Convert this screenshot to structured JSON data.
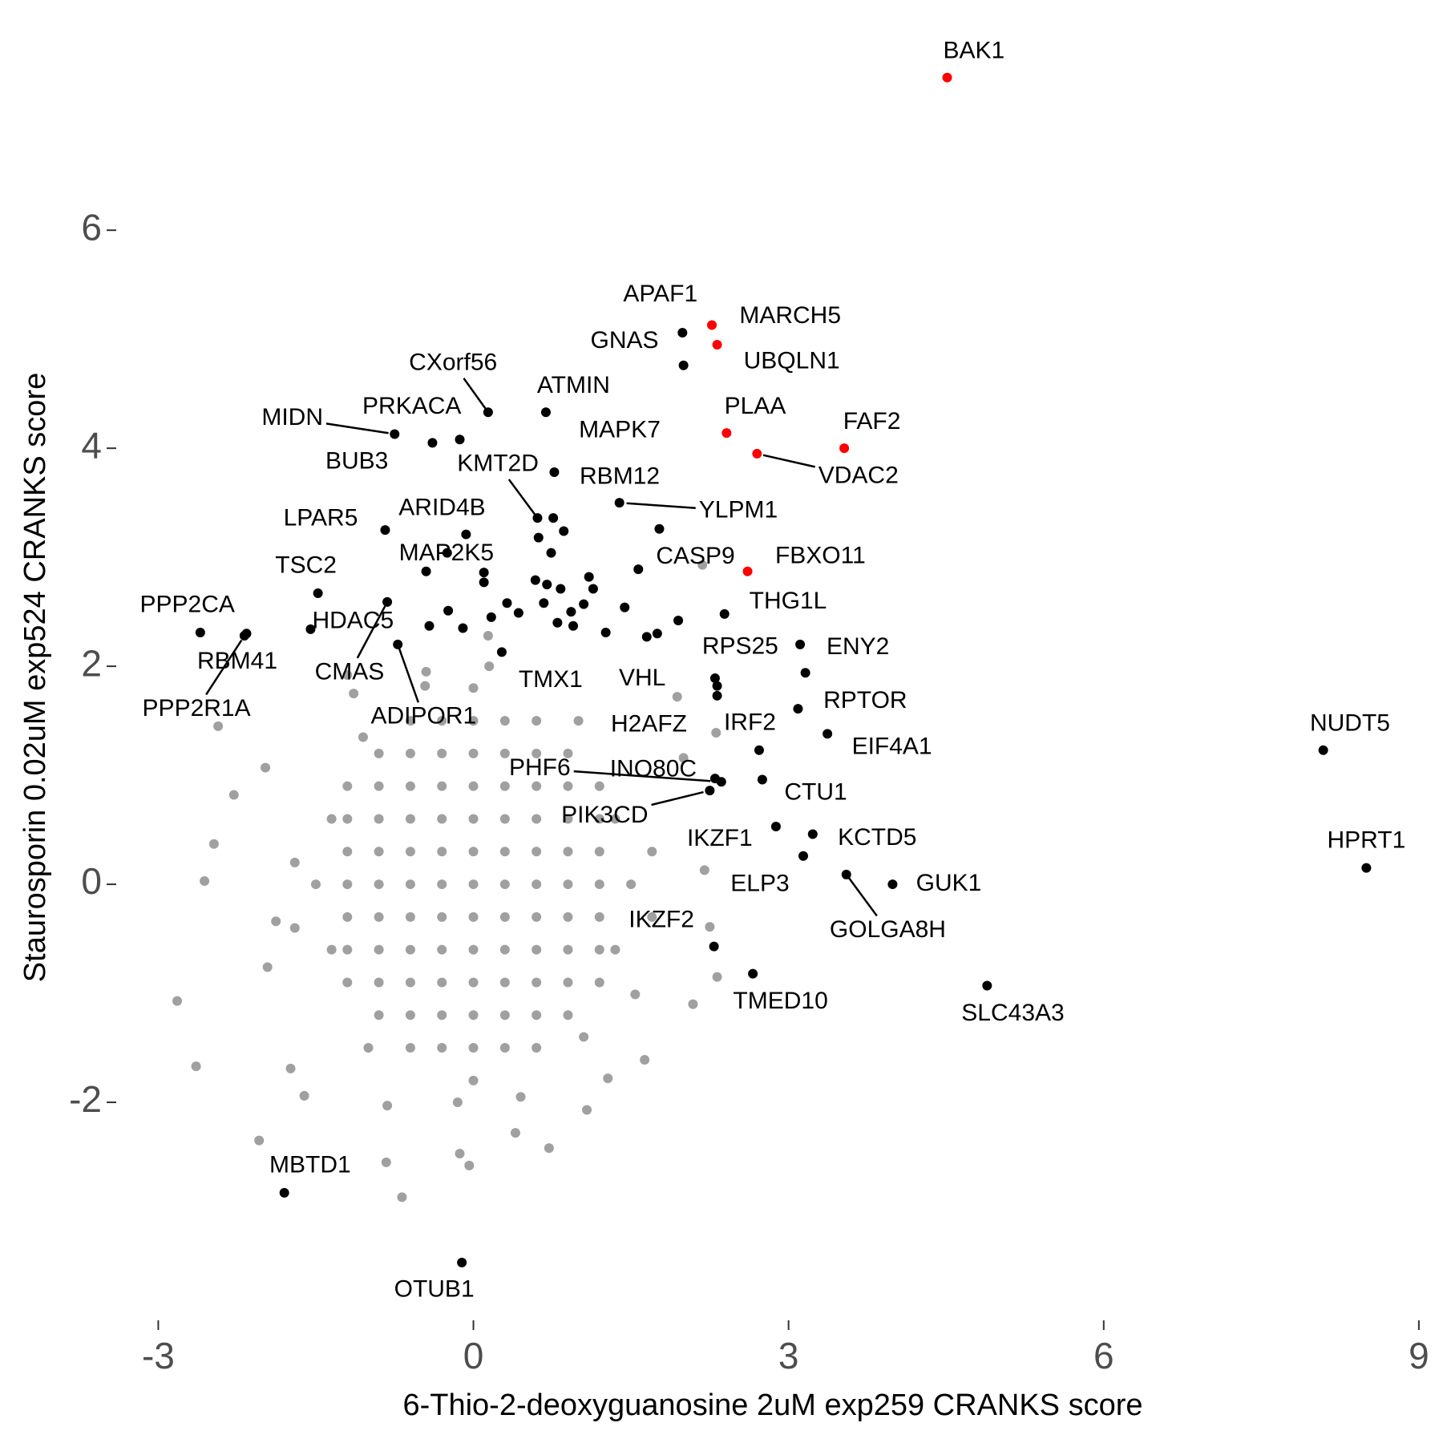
{
  "chart_data": {
    "type": "scatter",
    "x_label": "6-Thio-2-deoxyguanosine 2uM exp259 CRANKS score",
    "y_label": "Staurosporin 0.02uM exp524 CRANKS score",
    "xlim": [
      -3.4,
      9.1
    ],
    "ylim": [
      -4.0,
      7.7
    ],
    "xticks": [
      -3,
      0,
      3,
      6,
      9
    ],
    "yticks": [
      -2,
      0,
      2,
      4,
      6
    ],
    "grid": false,
    "series": [
      {
        "color": "#a0a0a0",
        "x": [
          -1.5,
          -1.2,
          -1.2,
          -1.2,
          -1.2,
          -1.2,
          -1.2,
          -1.2,
          -0.9,
          -0.9,
          -0.9,
          -0.9,
          -0.9,
          -0.9,
          -0.9,
          -0.9,
          -0.9,
          -0.6,
          -0.6,
          -0.6,
          -0.6,
          -0.6,
          -0.6,
          -0.6,
          -0.6,
          -0.6,
          -0.6,
          -0.6,
          -0.3,
          -0.3,
          -0.3,
          -0.3,
          -0.3,
          -0.3,
          -0.3,
          -0.3,
          -0.3,
          -0.3,
          -0.3,
          0,
          0,
          0,
          0,
          0,
          0,
          0,
          0,
          0,
          0,
          0,
          0,
          0,
          0.3,
          0.3,
          0.3,
          0.3,
          0.3,
          0.3,
          0.3,
          0.3,
          0.3,
          0.3,
          0.3,
          0.6,
          0.6,
          0.6,
          0.6,
          0.6,
          0.6,
          0.6,
          0.6,
          0.6,
          0.6,
          0.6,
          0.9,
          0.9,
          0.9,
          0.9,
          0.9,
          0.9,
          0.9,
          0.9,
          0.9,
          1.2,
          1.2,
          1.2,
          1.2,
          1.2,
          1.2,
          1.2,
          1.5,
          -2.82,
          -2.64,
          -2.43,
          -2.47,
          -2.28,
          -2.56,
          -2.04,
          -1.98,
          -1.74,
          -1.61,
          -1.2,
          -1.14,
          -0.83,
          -0.68,
          -0.04,
          -0.13,
          0.72,
          1.08,
          1.63,
          2.09,
          2.32,
          2.25,
          2.2,
          2.0,
          2.31,
          2.18,
          1.94,
          0.14,
          -0.46,
          -1.88,
          -1.96,
          1.54,
          1.28,
          -0.82,
          0.4,
          -1.35,
          -1.35,
          1.35,
          1.35,
          1.7,
          1.7,
          -1.7,
          -1.7,
          0.15,
          -0.15,
          0.45,
          -0.45,
          1.0,
          -1.0,
          1.05,
          -1.05
        ],
        "y": [
          0,
          -0.9,
          -0.6,
          -0.3,
          0,
          0.3,
          0.6,
          0.9,
          -1.2,
          -0.9,
          -0.6,
          -0.3,
          0,
          0.3,
          0.6,
          0.9,
          1.2,
          -1.5,
          -1.2,
          -0.9,
          -0.6,
          -0.3,
          0,
          0.3,
          0.6,
          0.9,
          1.2,
          1.5,
          -1.5,
          -1.2,
          -0.9,
          -0.6,
          -0.3,
          0,
          0.3,
          0.6,
          0.9,
          1.2,
          1.5,
          -1.8,
          -1.5,
          -1.2,
          -0.9,
          -0.6,
          -0.3,
          0,
          0.3,
          0.6,
          0.9,
          1.2,
          1.5,
          1.8,
          -1.5,
          -1.2,
          -0.9,
          -0.6,
          -0.3,
          0,
          0.3,
          0.6,
          0.9,
          1.2,
          1.5,
          -1.5,
          -1.2,
          -0.9,
          -0.6,
          -0.3,
          0,
          0.3,
          0.6,
          0.9,
          1.2,
          1.5,
          -1.2,
          -0.9,
          -0.6,
          -0.3,
          0,
          0.3,
          0.6,
          0.9,
          1.2,
          -0.9,
          -0.6,
          -0.3,
          0,
          0.3,
          0.6,
          0.9,
          0,
          -1.07,
          -1.67,
          1.45,
          0.37,
          0.82,
          0.03,
          -2.35,
          1.07,
          -1.69,
          -1.94,
          1.92,
          1.75,
          -2.55,
          -2.87,
          -2.58,
          -2.47,
          -2.42,
          -2.07,
          -1.61,
          -1.1,
          -0.85,
          -0.39,
          0.13,
          1.16,
          1.39,
          2.93,
          1.72,
          2.28,
          1.82,
          -0.34,
          -0.76,
          -1.01,
          -1.78,
          -2.03,
          -2.28,
          0.6,
          -0.6,
          0.6,
          -0.6,
          0.3,
          -0.3,
          0.2,
          -0.4,
          2.0,
          -2.0,
          -1.95,
          1.95,
          1.5,
          -1.5,
          -1.4,
          1.35
        ]
      },
      {
        "color": "#000000",
        "x": [
          0.62,
          0.76,
          0.86,
          0.74,
          0.1,
          0.1,
          0.59,
          0.7,
          0.83,
          1.1,
          1.14,
          0.32,
          0.43,
          0.67,
          1.05,
          0.93,
          0.8,
          0.95,
          1.26,
          1.44,
          1.95,
          1.75,
          1.65,
          -0.24,
          -0.42,
          -0.1,
          0.17,
          -0.25,
          2.32
        ],
        "y": [
          3.18,
          3.36,
          3.24,
          3.04,
          2.86,
          2.77,
          2.79,
          2.75,
          2.71,
          2.82,
          2.71,
          2.58,
          2.49,
          2.58,
          2.57,
          2.5,
          2.4,
          2.37,
          2.31,
          2.54,
          2.42,
          2.3,
          2.27,
          2.51,
          2.37,
          2.35,
          2.45,
          3.04,
          1.82
        ]
      },
      {
        "color": "#000000",
        "labels": [
          "APAF1",
          "GNAS",
          "CXorf56",
          "ATMIN",
          "MIDN",
          "PRKACA",
          "BUB3",
          "KMT2D",
          "MAPK7",
          "RBM12",
          "YLPM1",
          "LPAR5",
          "ARID4B",
          "MAP2K5",
          "CASP9",
          "TSC2",
          "THG1L",
          "PPP2CA",
          "RBM41",
          "PPP2R1A",
          "HDAC5",
          "CMAS",
          "ADIPOR1",
          "RPS25",
          "ENY2",
          "TMX1",
          "VHL",
          "H2AFZ",
          "RPTOR",
          "EIF4A1",
          "IRF2",
          "PHF6",
          "INO80C",
          "CTU1",
          "PIK3CD",
          "NUDT5",
          "HPRT1",
          "IKZF1",
          "KCTD5",
          "ELP3",
          "GOLGA8H",
          "GUK1",
          "IKZF2",
          "TMED10",
          "SLC43A3",
          "MBTD1",
          "OTUB1"
        ],
        "x": [
          1.99,
          2.0,
          0.14,
          0.69,
          -0.75,
          -0.13,
          -0.39,
          0.61,
          0.77,
          1.77,
          1.39,
          -0.84,
          -0.07,
          -0.45,
          1.57,
          -1.48,
          2.39,
          -2.6,
          -2.16,
          -2.18,
          -1.55,
          -0.82,
          -0.72,
          3.11,
          3.16,
          0.27,
          2.3,
          2.32,
          3.09,
          3.37,
          2.72,
          2.36,
          2.3,
          2.75,
          2.25,
          8.09,
          8.5,
          2.88,
          3.23,
          3.14,
          3.55,
          3.99,
          2.29,
          2.66,
          4.89,
          -1.8,
          -0.11
        ],
        "y": [
          5.06,
          4.76,
          4.33,
          4.33,
          4.13,
          4.08,
          4.05,
          3.36,
          3.78,
          3.26,
          3.5,
          3.25,
          3.21,
          2.87,
          2.89,
          2.67,
          2.48,
          2.31,
          2.3,
          2.28,
          2.34,
          2.59,
          2.2,
          2.2,
          1.94,
          2.13,
          1.89,
          1.73,
          1.61,
          1.38,
          1.23,
          0.94,
          0.97,
          0.96,
          0.86,
          1.23,
          0.15,
          0.53,
          0.46,
          0.26,
          0.09,
          0,
          -0.57,
          -0.82,
          -0.93,
          -2.83,
          -3.47
        ]
      },
      {
        "color": "#ff0000",
        "labels": [
          "BAK1",
          "MARCH5",
          "UBQLN1",
          "PLAA",
          "FAF2",
          "VDAC2",
          "FBXO11"
        ],
        "x": [
          4.51,
          2.27,
          2.32,
          2.41,
          3.53,
          2.7,
          2.61
        ],
        "y": [
          7.4,
          5.13,
          4.95,
          4.14,
          4.0,
          3.95,
          2.87
        ]
      }
    ]
  }
}
